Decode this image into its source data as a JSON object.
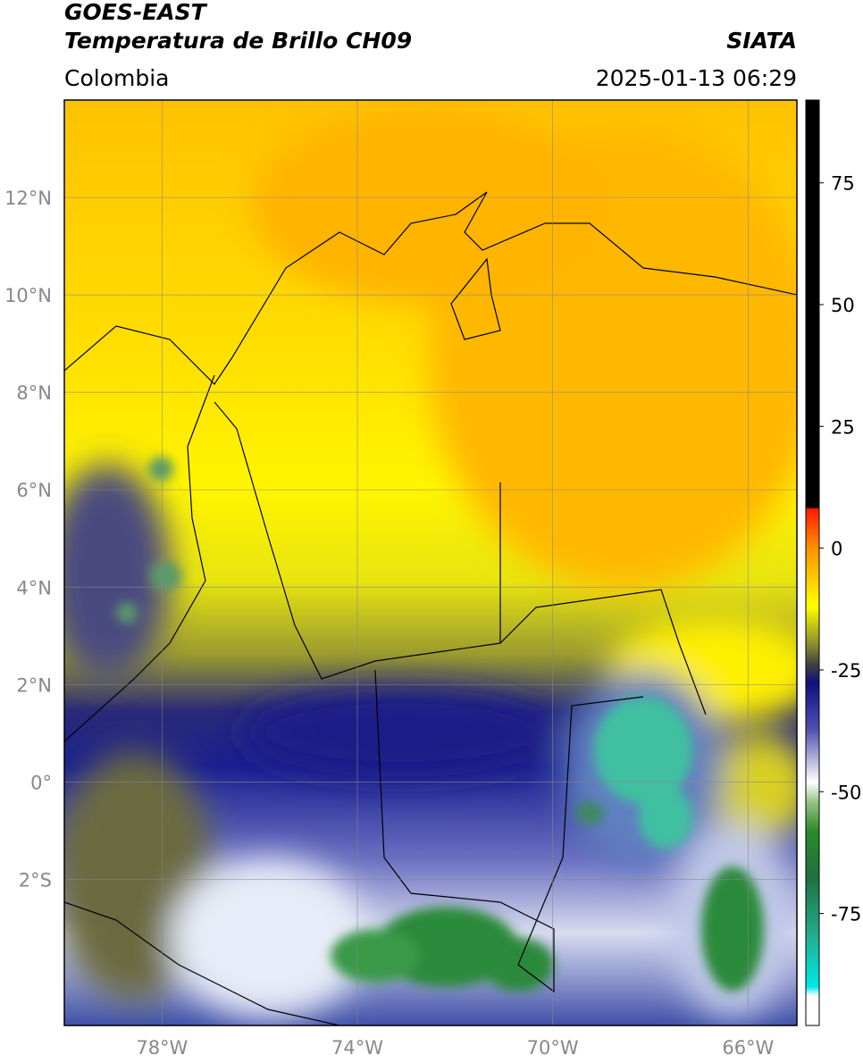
{
  "header": {
    "line1": "GOES-EAST",
    "line2": "Temperatura de Brillo CH09",
    "brand": "SIATA",
    "region": "Colombia",
    "datetime": "2025-01-13 06:29"
  },
  "map": {
    "lonlim": [
      -80,
      -65
    ],
    "latlim": [
      -5,
      14
    ],
    "lonticks": [
      {
        "value": -78,
        "label": "78°W"
      },
      {
        "value": -74,
        "label": "74°W"
      },
      {
        "value": -70,
        "label": "70°W"
      },
      {
        "value": -66,
        "label": "66°W"
      }
    ],
    "latticks": [
      {
        "value": 12,
        "label": "12°N"
      },
      {
        "value": 10,
        "label": "10°N"
      },
      {
        "value": 8,
        "label": "8°N"
      },
      {
        "value": 6,
        "label": "6°N"
      },
      {
        "value": 4,
        "label": "4°N"
      },
      {
        "value": 2,
        "label": "2°N"
      },
      {
        "value": 0,
        "label": "0°"
      },
      {
        "value": -2,
        "label": "2°S"
      }
    ]
  },
  "colorbar": {
    "lim": [
      -98,
      92
    ],
    "ticks": [
      75,
      50,
      25,
      0,
      -25,
      -50,
      -75
    ]
  }
}
